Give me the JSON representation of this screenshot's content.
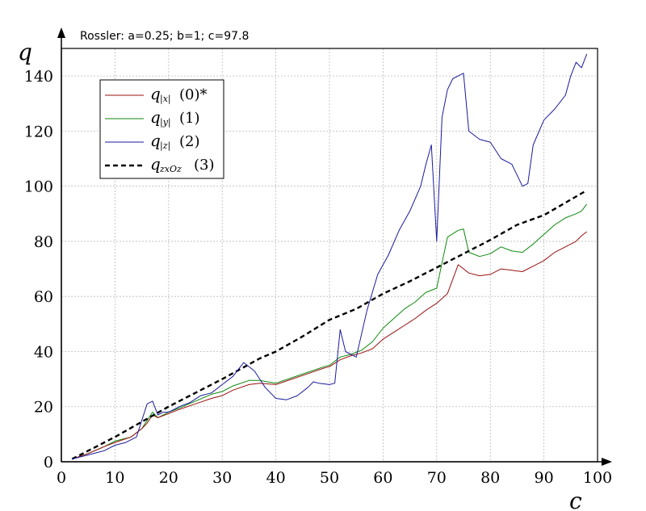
{
  "chart_data": {
    "type": "line",
    "title": "Rossler: a=0.25; b=1; c=97.8",
    "xlabel": "c",
    "ylabel": "q",
    "xlim": [
      0,
      100
    ],
    "ylim": [
      0,
      150
    ],
    "xticks": [
      0,
      10,
      20,
      30,
      40,
      50,
      60,
      70,
      80,
      90,
      100
    ],
    "yticks": [
      0,
      20,
      40,
      60,
      80,
      100,
      120,
      140
    ],
    "grid": true,
    "legend_position": "top-left",
    "series": [
      {
        "name": "q|x| (0)*",
        "legend_symbol": "q",
        "legend_subscript": "|x|",
        "legend_suffix": "(0)*",
        "color": "#9a1111",
        "style": "solid",
        "x": [
          2,
          5,
          8,
          10,
          13,
          15,
          16,
          17,
          18,
          20,
          22,
          25,
          28,
          30,
          32,
          35,
          37,
          40,
          43,
          46,
          49,
          50,
          52,
          54,
          56,
          58,
          60,
          62,
          64,
          66,
          68,
          70,
          72,
          74,
          76,
          78,
          80,
          82,
          84,
          86,
          88,
          90,
          92,
          94,
          96,
          97,
          98
        ],
        "values": [
          1,
          3,
          5.5,
          7,
          9,
          12,
          14,
          17,
          16,
          17.5,
          19,
          21,
          23,
          24,
          26,
          28,
          28.5,
          28,
          30,
          32,
          34,
          34.5,
          37,
          38.5,
          39.5,
          41,
          44.5,
          47,
          49.5,
          52,
          55,
          57.5,
          61,
          71.5,
          68.5,
          67.5,
          68,
          70,
          69.5,
          69,
          71,
          73,
          76,
          78,
          80,
          82,
          83.5
        ]
      },
      {
        "name": "q|y| (1)",
        "legend_symbol": "q",
        "legend_subscript": "|y|",
        "legend_suffix": "(1)",
        "color": "#0d8a0d",
        "style": "solid",
        "x": [
          2,
          5,
          8,
          10,
          13,
          15,
          16,
          17,
          18,
          20,
          22,
          25,
          28,
          30,
          32,
          35,
          37,
          40,
          43,
          46,
          49,
          50,
          52,
          54,
          56,
          58,
          60,
          62,
          64,
          66,
          68,
          70,
          72,
          74,
          75,
          76,
          78,
          80,
          82,
          84,
          86,
          88,
          90,
          92,
          94,
          96,
          97,
          98
        ],
        "values": [
          1,
          3,
          5.5,
          7.5,
          9,
          12,
          15,
          18,
          16,
          18,
          19.5,
          22,
          24.5,
          25.5,
          27.5,
          29.5,
          29.5,
          28.5,
          30.5,
          32.5,
          34.5,
          35,
          38,
          39,
          40.5,
          43.5,
          48.5,
          52,
          55.5,
          58,
          61.5,
          63,
          81.5,
          84,
          84.5,
          76,
          74.5,
          75.5,
          78,
          76.5,
          76,
          79,
          82.5,
          86,
          88.5,
          90,
          91,
          93.5
        ]
      },
      {
        "name": "q|z| (2)",
        "legend_symbol": "q",
        "legend_subscript": "|z|",
        "legend_suffix": "(2)",
        "color": "#1a1a9c",
        "style": "solid",
        "x": [
          2,
          5,
          8,
          10,
          12,
          14,
          16,
          17,
          18,
          19,
          20,
          22,
          24,
          26,
          28,
          30,
          32,
          34,
          36,
          37,
          38,
          39,
          40,
          42,
          44,
          46,
          47,
          48,
          50,
          51,
          52,
          53,
          55,
          57,
          59,
          61,
          63,
          65,
          67,
          68,
          69,
          70,
          71,
          72,
          73,
          74,
          75,
          76,
          78,
          80,
          82,
          84,
          86,
          87,
          88,
          90,
          92,
          94,
          95,
          96,
          97,
          98
        ],
        "values": [
          1,
          2.5,
          4,
          6,
          7,
          9,
          21,
          22,
          17,
          18,
          18,
          20,
          21.5,
          24,
          25,
          28,
          31,
          36,
          33,
          30,
          27,
          25,
          23,
          22.5,
          24,
          27,
          29,
          28.5,
          28,
          28.5,
          48,
          40,
          38,
          55,
          68,
          75,
          84,
          91,
          100,
          108,
          115,
          80,
          125,
          135,
          139,
          140,
          141,
          120,
          117,
          116,
          110,
          108,
          100,
          101,
          115,
          124,
          128,
          133,
          140,
          145,
          143,
          148
        ]
      },
      {
        "name": "qzxOz (3)",
        "legend_symbol": "q",
        "legend_subscript": "zxOz",
        "legend_suffix": "(3)",
        "color": "#000000",
        "style": "dashed",
        "x": [
          2,
          10,
          20,
          30,
          37,
          40,
          45,
          50,
          55,
          60,
          65,
          70,
          75,
          80,
          85,
          90,
          98
        ],
        "values": [
          1,
          9,
          20,
          30,
          37.5,
          40,
          45.5,
          51.5,
          55.5,
          61,
          65.5,
          70.5,
          75.5,
          80.5,
          86,
          89.5,
          98.5
        ]
      }
    ]
  }
}
